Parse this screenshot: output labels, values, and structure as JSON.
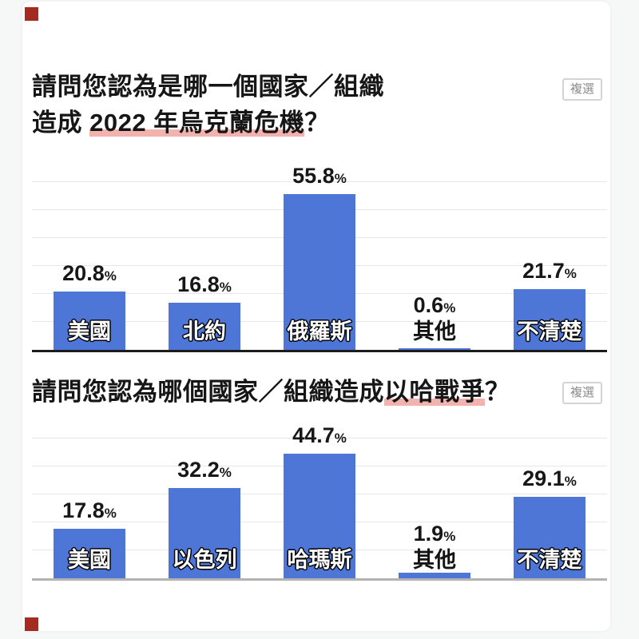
{
  "page": {
    "background": "#f6f7f7",
    "card_background": "#ffffff",
    "marker_color": "#a52b21",
    "bar_color": "#4d76d6",
    "highlight_color": "#f2b3ae"
  },
  "chart_data": [
    {
      "type": "bar",
      "title": "請問您認為是哪一個國家／組織造成 2022 年烏克蘭危機？",
      "title_line1": "請問您認為是哪一個國家／組織",
      "title_line2_prefix": "造成 ",
      "title_line2_highlight": "2022 年烏克蘭危機",
      "title_line2_suffix": "？",
      "badge": "複選",
      "categories": [
        "美國",
        "北約",
        "俄羅斯",
        "其他",
        "不清楚"
      ],
      "values": [
        20.8,
        16.8,
        55.8,
        0.6,
        21.7
      ],
      "value_suffix": "%",
      "xlabel": "",
      "ylabel": "",
      "ylim": [
        0,
        60
      ],
      "gridline_step": 10,
      "grid": true,
      "legend": "none",
      "axis_color": "#1c1c1c"
    },
    {
      "type": "bar",
      "title": "請問您認為哪個國家／組織造成以哈戰爭？",
      "title_line1_prefix": "請問您認為哪個國家／組織造成",
      "title_line1_highlight": "以哈戰爭",
      "title_line1_suffix": "？",
      "badge": "複選",
      "categories": [
        "美國",
        "以色列",
        "哈瑪斯",
        "其他",
        "不清楚"
      ],
      "values": [
        17.8,
        32.2,
        44.7,
        1.9,
        29.1
      ],
      "value_suffix": "%",
      "xlabel": "",
      "ylabel": "",
      "ylim": [
        0,
        50
      ],
      "gridline_step": 10,
      "grid": true,
      "legend": "none",
      "axis_color": "#b3b3b3"
    }
  ]
}
